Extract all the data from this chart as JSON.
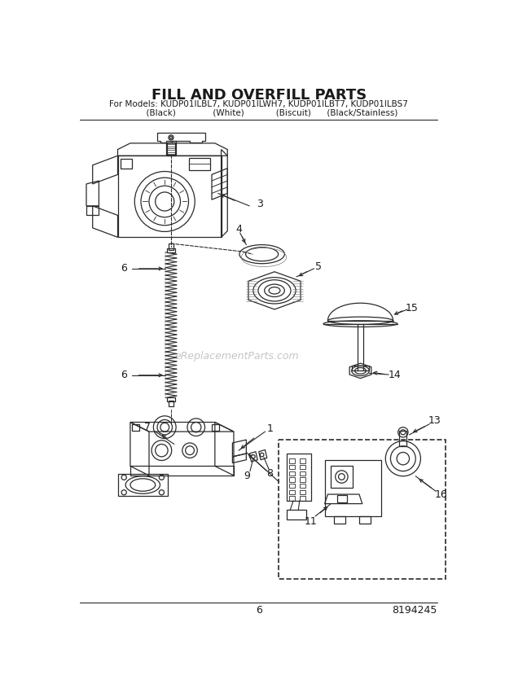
{
  "title": "FILL AND OVERFILL PARTS",
  "subtitle_line1": "For Models: KUDP01ILBL7, KUDP01ILWH7, KUDP01ILBT7, KUDP01ILBS7",
  "subtitle_line2": "          (Black)              (White)            (Biscuit)      (Black/Stainless)",
  "watermark": "eReplacementParts.com",
  "page_number": "6",
  "part_number": "8194245",
  "bg_color": "#ffffff",
  "text_color": "#1a1a1a",
  "diagram_color": "#2a2a2a",
  "gray": "#777777",
  "dashed_box_color": "#444444",
  "border_color": "#333333"
}
